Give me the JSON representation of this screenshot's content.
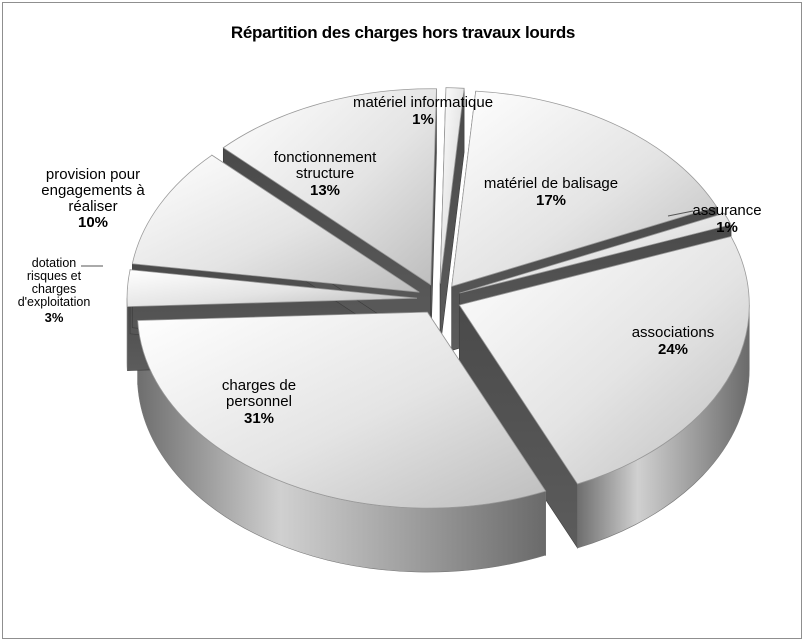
{
  "chart_data": {
    "type": "pie",
    "title": "Répartition des charges hors travaux lourds",
    "slices": [
      {
        "name": "matériel informatique",
        "value": 1,
        "label": "1%"
      },
      {
        "name": "matériel de balisage",
        "value": 17,
        "label": "17%"
      },
      {
        "name": "assurance",
        "value": 1,
        "label": "1%"
      },
      {
        "name": "associations",
        "value": 24,
        "label": "24%"
      },
      {
        "name": "charges de personnel",
        "value": 31,
        "label": "31%"
      },
      {
        "name": "dotation risques et charges d'exploitation",
        "value": 3,
        "label": "3%"
      },
      {
        "name": "provision pour engagements à réaliser",
        "value": 10,
        "label": "10%"
      },
      {
        "name": "fonctionnement structure",
        "value": 13,
        "label": "13%"
      }
    ],
    "style": "3D exploded pie, grayscale"
  }
}
